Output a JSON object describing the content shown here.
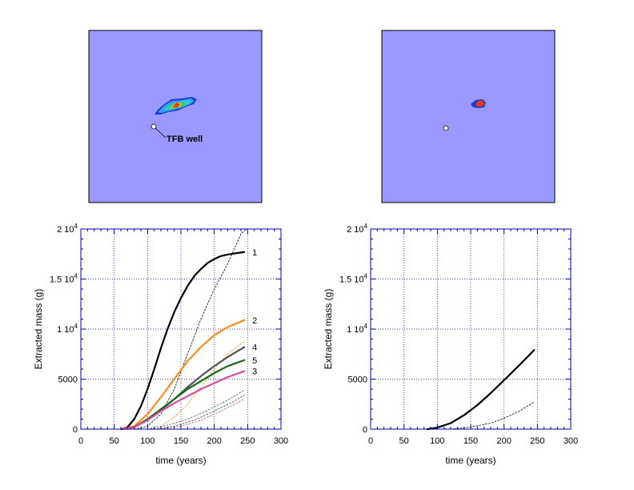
{
  "colors": {
    "map_background": "#9999ff",
    "grid": "#0000cc",
    "frame": "#0000aa",
    "well_marker": "#ffffff"
  },
  "maps": [
    {
      "annotation": "TFB well",
      "plume_colors": [
        "#1a3ccc",
        "#3399ff",
        "#33cccc",
        "#33cc66",
        "#ffcc00",
        "#ff3300"
      ]
    },
    {
      "annotation": "",
      "plume_colors": [
        "#1a3ccc",
        "#ff3300"
      ]
    }
  ],
  "chart_data": [
    {
      "type": "line",
      "xlabel": "time (years)",
      "ylabel": "Extracted mass (g)",
      "xlim": [
        0,
        300
      ],
      "ylim": [
        0,
        20000
      ],
      "grid": true,
      "x_ticks": [
        "0",
        "50",
        "100",
        "150",
        "200",
        "250",
        "300"
      ],
      "y_ticks": [
        {
          "base": "0",
          "exp": ""
        },
        {
          "base": "5000",
          "exp": ""
        },
        {
          "base": "1 10",
          "exp": "4"
        },
        {
          "base": "1.5 10",
          "exp": "4"
        },
        {
          "base": "2 10",
          "exp": "4"
        }
      ],
      "series": [
        {
          "name": "1",
          "color": "#000000",
          "style": "solid",
          "x": [
            60,
            70,
            80,
            90,
            100,
            110,
            120,
            130,
            140,
            150,
            160,
            170,
            180,
            190,
            200,
            210,
            220,
            230,
            240,
            245
          ],
          "y": [
            0,
            200,
            1000,
            2300,
            4000,
            6000,
            8100,
            10000,
            11700,
            13100,
            14300,
            15300,
            16000,
            16600,
            17000,
            17300,
            17450,
            17550,
            17650,
            17700
          ]
        },
        {
          "name": "",
          "color": "#000000",
          "style": "dashed",
          "x": [
            80,
            100,
            120,
            140,
            160,
            180,
            200,
            220,
            240,
            248
          ],
          "y": [
            0,
            300,
            1500,
            4000,
            7500,
            11000,
            14000,
            16500,
            19500,
            20000
          ]
        },
        {
          "name": "2",
          "color": "#ff8c1a",
          "style": "solid",
          "x": [
            60,
            80,
            100,
            120,
            140,
            160,
            180,
            200,
            220,
            245
          ],
          "y": [
            0,
            300,
            1500,
            3200,
            5000,
            6800,
            8200,
            9400,
            10200,
            10900
          ]
        },
        {
          "name": "",
          "color": "#ff8c1a",
          "style": "dashed",
          "x": [
            100,
            120,
            140,
            160,
            180,
            200,
            220,
            245
          ],
          "y": [
            0,
            300,
            1200,
            2500,
            4200,
            6000,
            7500,
            8800
          ]
        },
        {
          "name": "4",
          "color": "#555555",
          "style": "solid",
          "x": [
            60,
            80,
            100,
            120,
            140,
            160,
            180,
            200,
            220,
            245
          ],
          "y": [
            0,
            200,
            900,
            1900,
            3000,
            4200,
            5300,
            6300,
            7200,
            8200
          ]
        },
        {
          "name": "5",
          "color": "#1a6b1a",
          "style": "solid",
          "x": [
            60,
            80,
            100,
            120,
            140,
            160,
            180,
            200,
            220,
            245
          ],
          "y": [
            0,
            200,
            1000,
            2000,
            3000,
            4000,
            4800,
            5600,
            6300,
            6900
          ]
        },
        {
          "name": "3",
          "color": "#d64d9c",
          "style": "solid",
          "x": [
            60,
            80,
            100,
            120,
            140,
            160,
            180,
            200,
            220,
            245
          ],
          "y": [
            0,
            200,
            900,
            1800,
            2600,
            3300,
            4000,
            4600,
            5200,
            5800
          ]
        },
        {
          "name": "",
          "color": "#555555",
          "style": "dashed",
          "x": [
            100,
            130,
            160,
            190,
            220,
            245
          ],
          "y": [
            0,
            400,
            1000,
            1900,
            2900,
            3900
          ]
        },
        {
          "name": "",
          "color": "#1a6b1a",
          "style": "dashed",
          "x": [
            110,
            140,
            170,
            200,
            230,
            245
          ],
          "y": [
            0,
            300,
            900,
            1800,
            2800,
            3400
          ]
        },
        {
          "name": "",
          "color": "#d64d9c",
          "style": "dashed",
          "x": [
            120,
            150,
            180,
            210,
            245
          ],
          "y": [
            0,
            300,
            900,
            1800,
            3000
          ]
        }
      ]
    },
    {
      "type": "line",
      "xlabel": "time (years)",
      "ylabel": "Extracted mass (g)",
      "xlim": [
        0,
        300
      ],
      "ylim": [
        0,
        20000
      ],
      "grid": true,
      "x_ticks": [
        "0",
        "50",
        "100",
        "150",
        "200",
        "250",
        "300"
      ],
      "y_ticks": [
        {
          "base": "0",
          "exp": ""
        },
        {
          "base": "5000",
          "exp": ""
        },
        {
          "base": "1 10",
          "exp": "4"
        },
        {
          "base": "1.5 10",
          "exp": "4"
        },
        {
          "base": "2 10",
          "exp": "4"
        }
      ],
      "series": [
        {
          "name": "",
          "color": "#000000",
          "style": "solid",
          "x": [
            85,
            100,
            120,
            140,
            160,
            180,
            200,
            220,
            245
          ],
          "y": [
            0,
            150,
            600,
            1400,
            2400,
            3600,
            4900,
            6200,
            7900
          ]
        },
        {
          "name": "",
          "color": "#000000",
          "style": "dashed",
          "x": [
            120,
            150,
            180,
            200,
            220,
            245
          ],
          "y": [
            0,
            200,
            600,
            1100,
            1700,
            2700
          ]
        }
      ]
    }
  ]
}
